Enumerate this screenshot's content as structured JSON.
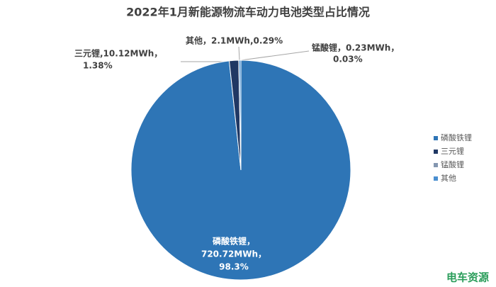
{
  "chart_data": {
    "type": "pie",
    "title": "2022年1月新能源物流车动力电池类型占比情况",
    "categories": [
      "磷酸铁锂",
      "三元锂",
      "锰酸锂",
      "其他"
    ],
    "values": [
      720.72,
      10.12,
      0.23,
      2.1
    ],
    "value_labels": [
      [
        "磷酸铁锂，",
        "720.72MWh，",
        "98.3%"
      ],
      [
        "三元锂,10.12MWh，",
        "1.38%"
      ],
      [
        "锰酸锂，0.23MWh，",
        "0.03%"
      ],
      [
        "其他，2.1MWh,0.29%"
      ]
    ],
    "colors": [
      "#2e75b6",
      "#203864",
      "#8497b0",
      "#4a8fd0"
    ],
    "legend": "right"
  },
  "logo": "电车资源"
}
